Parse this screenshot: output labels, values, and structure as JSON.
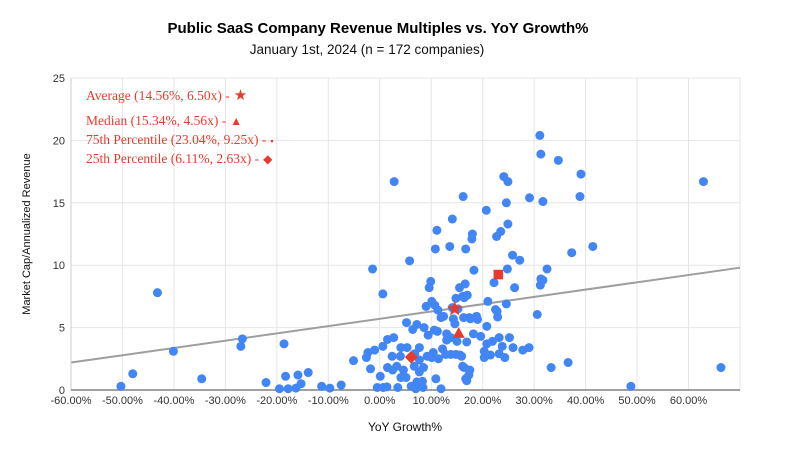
{
  "title": "Public SaaS Company Revenue Multiples vs. YoY Growth%",
  "subtitle": "January 1st, 2024 (n = 172 companies)",
  "colors": {
    "point": "#4285F4",
    "accent_red": "#E83B2E",
    "trendline": "#9e9e9e",
    "gridline": "#e6e6e6",
    "y_axis_line": "#cccccc",
    "x_axis_line": "#808080",
    "text": "#111111",
    "tick_text": "#333333"
  },
  "legend": {
    "items": [
      {
        "label": "Average (14.56%, 6.50x) -",
        "glyph": "★",
        "marker": "star"
      },
      {
        "label": "Median (15.34%, 4.56x) -",
        "glyph": "▲",
        "marker": "triangle"
      },
      {
        "label": "75th Percentile (23.04%, 9.25x) -",
        "glyph": "▪",
        "marker": "square"
      },
      {
        "label": "25th Percentile (6.11%, 2.63x) -",
        "glyph": "◆",
        "marker": "diamond"
      }
    ]
  },
  "chart_data": {
    "type": "scatter",
    "title": "Public SaaS Company Revenue Multiples vs. YoY Growth%",
    "subtitle": "January 1st, 2024 (n = 172 companies)",
    "xlabel": "YoY Growth%",
    "ylabel": "Market Cap/Annualized Revenue",
    "xlim": [
      -60,
      70
    ],
    "ylim": [
      0,
      25
    ],
    "grid": true,
    "x_ticks": [
      "-60.00%",
      "-50.00%",
      "-40.00%",
      "-30.00%",
      "-20.00%",
      "-10.00%",
      "0.00%",
      "10.00%",
      "20.00%",
      "30.00%",
      "40.00%",
      "50.00%",
      "60.00%"
    ],
    "x_tick_values": [
      -60,
      -50,
      -40,
      -30,
      -20,
      -10,
      0,
      10,
      20,
      30,
      40,
      50,
      60
    ],
    "y_ticks": [
      0,
      5,
      10,
      15,
      20,
      25
    ],
    "n_companies": 172,
    "trendline": {
      "x1": -60,
      "y1": 2.2,
      "x2": 70,
      "y2": 9.8
    },
    "stat_markers": [
      {
        "name": "average",
        "shape": "star",
        "x": 14.56,
        "y": 6.5
      },
      {
        "name": "median",
        "shape": "triangle",
        "x": 15.34,
        "y": 4.56
      },
      {
        "name": "75th-percentile",
        "shape": "square",
        "x": 23.04,
        "y": 9.25
      },
      {
        "name": "25th-percentile",
        "shape": "diamond",
        "x": 6.11,
        "y": 2.63
      }
    ],
    "points": [
      [
        -50.3,
        0.3
      ],
      [
        -48,
        1.3
      ],
      [
        -43.2,
        7.8
      ],
      [
        -40.1,
        3.1
      ],
      [
        -34.6,
        0.9
      ],
      [
        -27,
        3.5
      ],
      [
        -26.7,
        4.1
      ],
      [
        -22.1,
        0.6
      ],
      [
        -19.5,
        0.1
      ],
      [
        -18.6,
        3.7
      ],
      [
        -18.3,
        1.1
      ],
      [
        -17.8,
        0.1
      ],
      [
        -16.3,
        0.15
      ],
      [
        -15.9,
        1.2
      ],
      [
        -15.3,
        0.5
      ],
      [
        -13.9,
        1.4
      ],
      [
        -11.3,
        0.3
      ],
      [
        -9.7,
        0.15
      ],
      [
        -7.5,
        0.4
      ],
      [
        -5.1,
        2.35
      ],
      [
        -2.6,
        2.6
      ],
      [
        -2.3,
        3
      ],
      [
        -1.8,
        1.7
      ],
      [
        -1.4,
        9.7
      ],
      [
        -1,
        3.2
      ],
      [
        -0.5,
        0.2
      ],
      [
        0.1,
        1.1
      ],
      [
        0.6,
        3.5
      ],
      [
        0.6,
        7.7
      ],
      [
        0.7,
        0.2
      ],
      [
        1.4,
        0.25
      ],
      [
        1.5,
        1.8
      ],
      [
        1.5,
        4.05
      ],
      [
        2.4,
        2.7
      ],
      [
        2.5,
        1.6
      ],
      [
        2.7,
        4.2
      ],
      [
        2.8,
        16.7
      ],
      [
        3.3,
        1.9
      ],
      [
        3.5,
        0.2
      ],
      [
        4,
        2.7
      ],
      [
        4.1,
        1
      ],
      [
        4.1,
        3.4
      ],
      [
        4.6,
        1.6
      ],
      [
        5.1,
        1
      ],
      [
        5.2,
        5.4
      ],
      [
        5.3,
        3.4
      ],
      [
        5.8,
        10.35
      ],
      [
        6.1,
        0.3
      ],
      [
        6.4,
        4.85
      ],
      [
        6.7,
        1.9
      ],
      [
        6.8,
        2.9
      ],
      [
        7,
        0.1
      ],
      [
        7.2,
        0.65
      ],
      [
        7.2,
        5.25
      ],
      [
        7.5,
        0.35
      ],
      [
        7.7,
        1.45
      ],
      [
        7.7,
        2.4
      ],
      [
        7.7,
        3.4
      ],
      [
        8.3,
        0.7
      ],
      [
        8.4,
        0.2
      ],
      [
        8.5,
        1.8
      ],
      [
        8.6,
        5
      ],
      [
        9,
        6.7
      ],
      [
        9.2,
        2.7
      ],
      [
        9.4,
        4.4
      ],
      [
        9.6,
        8.2
      ],
      [
        9.9,
        8.7
      ],
      [
        10.1,
        2.6
      ],
      [
        10.1,
        7.1
      ],
      [
        10.4,
        3
      ],
      [
        10.6,
        4.8
      ],
      [
        10.7,
        6.8
      ],
      [
        10.8,
        11.3
      ],
      [
        10.9,
        0.9
      ],
      [
        11.1,
        12.8
      ],
      [
        11.2,
        4.7
      ],
      [
        11.3,
        6.4
      ],
      [
        11.4,
        2.5
      ],
      [
        11.9,
        0.1
      ],
      [
        11.9,
        5.8
      ],
      [
        12.2,
        3.3
      ],
      [
        12.4,
        5.9
      ],
      [
        12.8,
        2.85
      ],
      [
        13,
        4
      ],
      [
        13,
        4.5
      ],
      [
        13.6,
        11.5
      ],
      [
        13.8,
        2.85
      ],
      [
        13.8,
        4.2
      ],
      [
        14.1,
        6.6
      ],
      [
        14.1,
        13.7
      ],
      [
        14.3,
        5.7
      ],
      [
        14.6,
        5.3
      ],
      [
        14.8,
        2.85
      ],
      [
        14.8,
        7.35
      ],
      [
        15,
        3.9
      ],
      [
        15.2,
        6.5
      ],
      [
        15.5,
        8.2
      ],
      [
        15.6,
        2.8
      ],
      [
        15.9,
        2.7
      ],
      [
        16.1,
        1.9
      ],
      [
        16.1,
        7.5
      ],
      [
        16.2,
        15.5
      ],
      [
        16.3,
        5.8
      ],
      [
        16.4,
        1.8
      ],
      [
        16.4,
        7.4
      ],
      [
        16.6,
        8.5
      ],
      [
        16.7,
        0.9
      ],
      [
        16.7,
        11.3
      ],
      [
        16.9,
        0.75
      ],
      [
        16.9,
        3.85
      ],
      [
        17,
        7.6
      ],
      [
        17.3,
        1.2
      ],
      [
        17.4,
        5.8
      ],
      [
        17.5,
        1.6
      ],
      [
        17.6,
        5.7
      ],
      [
        17.9,
        12.1
      ],
      [
        18,
        12.5
      ],
      [
        18.2,
        4.5
      ],
      [
        18.3,
        9.6
      ],
      [
        18.8,
        5.9
      ],
      [
        19,
        5.65
      ],
      [
        19.6,
        4.3
      ],
      [
        20.3,
        2.6
      ],
      [
        20.3,
        3.1
      ],
      [
        20.7,
        14.4
      ],
      [
        20.8,
        3.7
      ],
      [
        20.8,
        5.1
      ],
      [
        21,
        7.1
      ],
      [
        21.5,
        2.8
      ],
      [
        21.9,
        3.9
      ],
      [
        22.2,
        8.6
      ],
      [
        22.5,
        6.45
      ],
      [
        22.7,
        12.3
      ],
      [
        22.8,
        6.3
      ],
      [
        22.9,
        5.85
      ],
      [
        23.2,
        2.9
      ],
      [
        23.2,
        4.2
      ],
      [
        23.5,
        12.7
      ],
      [
        23.8,
        3.5
      ],
      [
        24.1,
        17.1
      ],
      [
        24.3,
        2.6
      ],
      [
        24.6,
        6.9
      ],
      [
        24.6,
        15
      ],
      [
        24.8,
        9.7
      ],
      [
        24.9,
        13.3
      ],
      [
        24.9,
        16.7
      ],
      [
        25.2,
        4.2
      ],
      [
        25.8,
        10.8
      ],
      [
        25.9,
        3.4
      ],
      [
        26.2,
        8.2
      ],
      [
        27.2,
        10.4
      ],
      [
        27.8,
        3.2
      ],
      [
        29,
        3.4
      ],
      [
        29.1,
        15.4
      ],
      [
        30.6,
        6.05
      ],
      [
        31.1,
        20.4
      ],
      [
        31.2,
        8.4
      ],
      [
        31.3,
        8.9
      ],
      [
        31.3,
        18.9
      ],
      [
        31.7,
        8.8
      ],
      [
        31.7,
        15.1
      ],
      [
        32.5,
        9.7
      ],
      [
        33.3,
        1.8
      ],
      [
        34.7,
        18.4
      ],
      [
        36.6,
        2.2
      ],
      [
        37.3,
        11
      ],
      [
        38.9,
        15.5
      ],
      [
        39.1,
        17.3
      ],
      [
        41.4,
        11.5
      ],
      [
        48.8,
        0.3
      ],
      [
        62.9,
        16.7
      ],
      [
        66.3,
        1.8
      ]
    ]
  }
}
